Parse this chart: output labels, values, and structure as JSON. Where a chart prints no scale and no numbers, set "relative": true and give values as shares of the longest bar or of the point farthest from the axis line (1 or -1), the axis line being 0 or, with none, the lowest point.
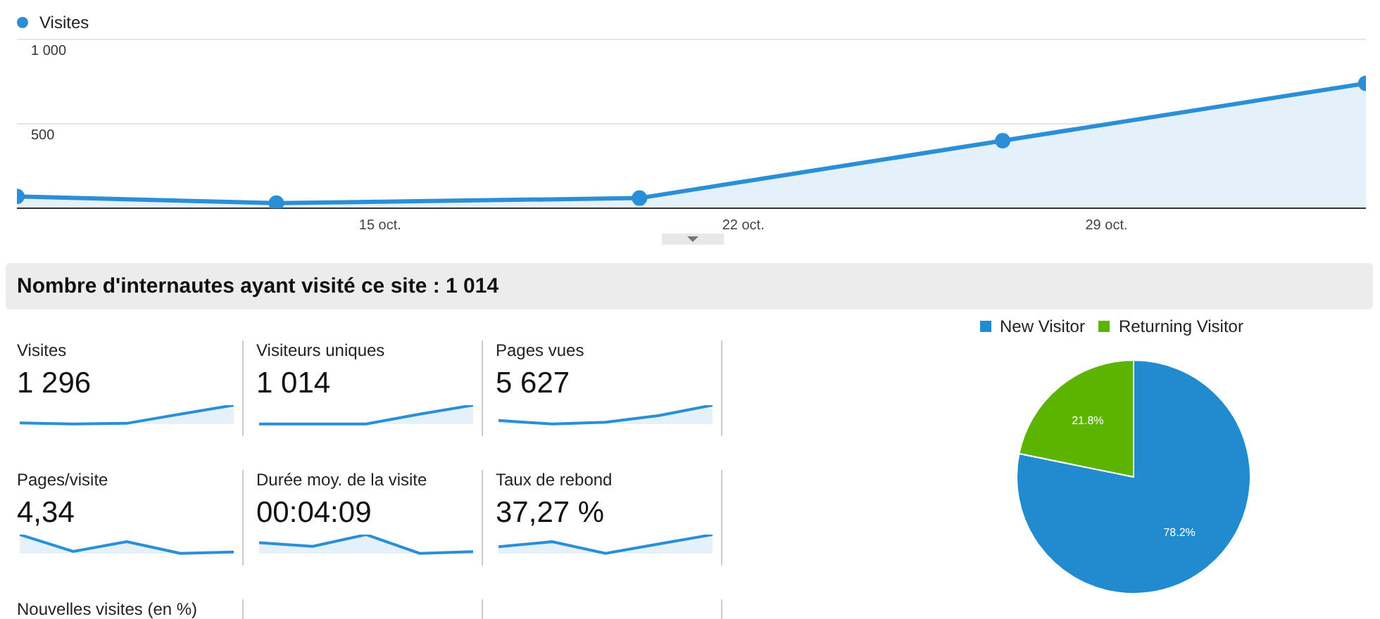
{
  "chart_data": [
    {
      "type": "area",
      "x": [
        "--10-08",
        "--10-13",
        "--10-20",
        "--10-27",
        "--11-03"
      ],
      "series": [
        {
          "name": "Visites",
          "color": "#2a8fd6",
          "values": [
            70,
            30,
            60,
            400,
            740
          ]
        }
      ],
      "xlim": [
        "--10-08",
        "--11-03"
      ],
      "xticks": [
        {
          "value": "--10-15",
          "label": "15 oct."
        },
        {
          "value": "--10-22",
          "label": "22 oct."
        },
        {
          "value": "--10-29",
          "label": "29 oct."
        }
      ],
      "ylim": [
        0,
        1000
      ],
      "yticks": [
        {
          "value": 0,
          "label": null
        },
        {
          "value": 500,
          "label": "500"
        },
        {
          "value": 1000,
          "label": "1 000"
        }
      ],
      "grid": "y",
      "legend": "top left",
      "marker": "circle"
    },
    {
      "type": "other",
      "title": "Nombre d'internautes ayant visité ce site : 1 014"
    },
    {
      "type": "area",
      "title": "Visites",
      "subtitle": "1 296",
      "relative": true,
      "categories": [
        null,
        null,
        null,
        null,
        null
      ],
      "values": [
        0.05,
        0,
        0.03,
        0.52,
        1
      ],
      "color": "#2a8fd6"
    },
    {
      "type": "area",
      "title": "Visiteurs uniques",
      "subtitle": "1 014",
      "relative": true,
      "categories": [
        null,
        null,
        null,
        null,
        null
      ],
      "values": [
        0,
        0,
        0,
        0.52,
        1
      ],
      "color": "#2a8fd6"
    },
    {
      "type": "area",
      "title": "Pages vues",
      "subtitle": "5 627",
      "relative": true,
      "categories": [
        null,
        null,
        null,
        null,
        null
      ],
      "values": [
        0.18,
        0,
        0.09,
        0.45,
        1
      ],
      "color": "#2a8fd6"
    },
    {
      "type": "area",
      "title": "Pages/visite",
      "subtitle": "4,34",
      "relative": true,
      "categories": [
        null,
        null,
        null,
        null,
        null
      ],
      "values": [
        1,
        0.1,
        0.62,
        0,
        0.07
      ],
      "color": "#2a8fd6"
    },
    {
      "type": "area",
      "title": "Durée moy. de la visite",
      "subtitle": "00:04:09",
      "relative": true,
      "categories": [
        null,
        null,
        null,
        null,
        null
      ],
      "values": [
        0.57,
        0.37,
        1,
        0,
        0.09
      ],
      "color": "#2a8fd6"
    },
    {
      "type": "area",
      "title": "Taux de rebond",
      "subtitle": "37,27 %",
      "relative": true,
      "categories": [
        null,
        null,
        null,
        null,
        null
      ],
      "values": [
        0.35,
        0.62,
        0,
        0.5,
        1
      ],
      "color": "#2a8fd6"
    },
    {
      "type": "other",
      "title": "Nouvelles visites (en %)"
    },
    {
      "type": "pie",
      "categories": [
        "New Visitor",
        "Returning Visitor"
      ],
      "values": [
        78.2,
        21.8
      ],
      "colors": [
        "#218bcf",
        "#5db400"
      ],
      "value_labels": [
        "78.2%",
        "21.8%"
      ],
      "legend": "top"
    }
  ]
}
